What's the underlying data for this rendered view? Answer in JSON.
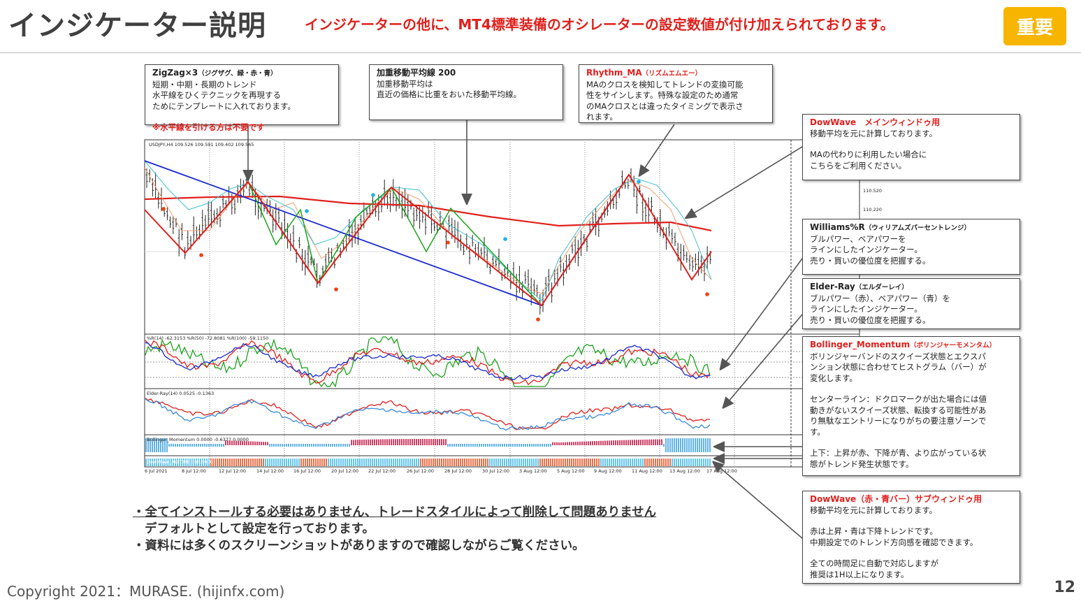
{
  "header": {
    "title": "インジケーター説明",
    "subtitle": "インジケーターの他に、MT4標準装備のオシレーターの設定数値が付け加えられております。",
    "badge": "重要"
  },
  "screenshot": {
    "symbol": "USDJPY,H4  109.526 109.591 109.402 109.565",
    "price_labels": [
      "110.520",
      "110.220"
    ],
    "panels": [
      "%R(14) -62.3153  %R(50) -72.8081  %R(100) -59.1150",
      "Elder-Ray(14) 0.0525 -0.1363",
      "Bollinger_Momentum 0.0000 -0.6377 0.0000",
      "DowWave_ALLTIME 185.1000"
    ],
    "dates": [
      "6 Jul 2021",
      "8 Jul 12:00",
      "12 Jul 12:00",
      "14 Jul 12:00",
      "16 Jul 12:00",
      "20 Jul 12:00",
      "22 Jul 12:00",
      "26 Jul 12:00",
      "28 Jul 12:00",
      "30 Jul 12:00",
      "3 Aug 12:00",
      "5 Aug 12:00",
      "9 Aug 12:00",
      "11 Aug 12:00",
      "13 Aug 12:00",
      "17 Aug 12:00"
    ]
  },
  "callouts": [
    {
      "title_main": "ZigZag×3",
      "title_sub": "（ジグザグ、緑・赤・青）",
      "title_color": "#222222",
      "paragraphs": [
        [
          "短期・中期・長期のトレンド",
          "水平線をひくテクニックを再現する",
          "ためにテンプレートに入れております。"
        ]
      ],
      "note": "※水平線を引ける方は不要です"
    },
    {
      "title_main": "加重移動平均線 200",
      "title_color": "#222222",
      "paragraphs": [
        [
          "加重移動平均は",
          "直近の価格に比重をおいた移動平均線。"
        ]
      ]
    },
    {
      "title_main": "Rhythm_MA",
      "title_sub": "（リズムエムエー）",
      "title_color": "#e0201c",
      "paragraphs": [
        [
          "MAのクロスを検知してトレンドの変換可能",
          "性をサインします。特殊な設定のため通常",
          "のMAクロスとは違ったタイミングで表示さ",
          "れます。"
        ]
      ]
    },
    {
      "title_main": "DowWave　メインウィンドゥ用",
      "title_color": "#e0201c",
      "paragraphs": [
        [
          "移動平均を元に計算しております。"
        ],
        [
          "MAの代わりに利用したい場合に",
          "こちらをご利用ください。"
        ]
      ]
    },
    {
      "title_main": "Williams%R",
      "title_sub": "（ウィリアムズパーセントレンジ）",
      "title_color": "#222222",
      "paragraphs": [
        [
          "ブルパワー、ベアパワーを",
          "ラインにしたインジケーター。",
          "売り・買いの優位度を把握する。"
        ]
      ]
    },
    {
      "title_main": "Elder-Ray",
      "title_sub": "（エルダーレイ）",
      "title_color": "#222222",
      "paragraphs": [
        [
          "ブルパワー（赤）、ベアパワー（青）を",
          "ラインにしたインジケーター。",
          "売り・買いの優位度を把握する。"
        ]
      ]
    },
    {
      "title_main": "Bollinger_Momentum",
      "title_sub": "（ボリンジャーモメンタム）",
      "title_color": "#e0201c",
      "paragraphs": [
        [
          "ボリンジャーバンドのスクイーズ状態とエクスパ",
          "ンション状態に合わせてヒストグラム（バー）が",
          "変化します。"
        ],
        [
          "センターライン：ドクロマークが出た場合には値",
          "動きがないスクイーズ状態、転換する可能性があ",
          "り無駄なエントリーになりがちの要注意ゾーンで",
          "す。"
        ],
        [
          "上下：上昇が赤、下降が青、より広がっている状",
          "態がトレンド発生状態です。"
        ]
      ]
    },
    {
      "title_main": "DowWave（赤・青バー）サブウィンドゥ用",
      "title_color": "#e0201c",
      "paragraphs": [
        [
          "移動平均を元に計算しております。"
        ],
        [
          "赤は上昇・青は下降トレンドです。",
          "中期設定でのトレンド方向感を確認できます。"
        ],
        [
          "全ての時間足に自動で対応しますが",
          "推奨は1H以上になります。"
        ]
      ]
    }
  ],
  "notes": [
    "・全てインストールする必要はありません、トレードスタイルによって削除して問題ありません",
    "デフォルトとして設定を行っております。",
    "・資料には多くのスクリーンショットがありますので確認しながらご覧ください。"
  ],
  "footer": {
    "copyright": "Copyright 2021：MURASE. (hijinfx.com)",
    "page": "12"
  }
}
